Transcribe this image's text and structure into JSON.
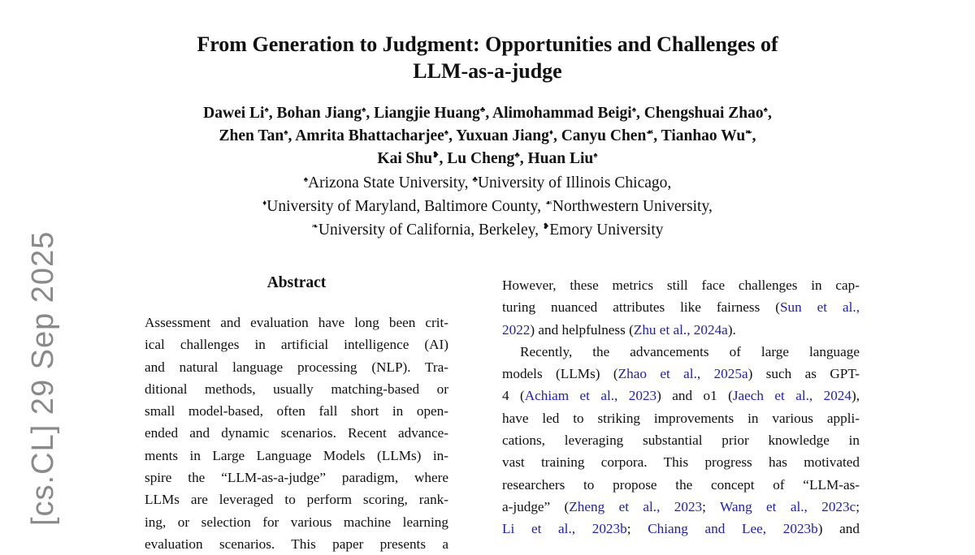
{
  "title": [
    "From Generation to Judgment: Opportunities and Challenges of",
    "LLM-as-a-judge"
  ],
  "authors": [
    [
      [
        "Dawei Li",
        "♠"
      ],
      [
        "Bohan Jiang",
        "♠"
      ],
      [
        "Liangjie Huang",
        "♣"
      ],
      [
        "Alimohammad Beigi",
        "♠"
      ],
      [
        "Chengshuai Zhao",
        "♠"
      ]
    ],
    [
      [
        "Zhen Tan",
        "♠"
      ],
      [
        "Amrita Bhattacharjee",
        "♠"
      ],
      [
        "Yuxuan Jiang",
        "♦"
      ],
      [
        "Canyu Chen",
        "☙"
      ],
      [
        "Tianhao Wu",
        "❧"
      ]
    ],
    [
      [
        "Kai Shu",
        "❥"
      ],
      [
        "Lu Cheng",
        "♣"
      ],
      [
        "Huan Liu",
        "♠"
      ]
    ]
  ],
  "affiliations": [
    [
      [
        "♠",
        "Arizona State University"
      ],
      [
        "♣",
        "University of Illinois Chicago"
      ]
    ],
    [
      [
        "♦",
        "University of Maryland, Baltimore County"
      ],
      [
        "☙",
        "Northwestern University"
      ]
    ],
    [
      [
        "❧",
        "University of California, Berkeley"
      ],
      [
        "❥",
        "Emory University"
      ]
    ]
  ],
  "arxiv_stamp": "[cs.CL]  29 Sep 2025",
  "abstract_heading": "Abstract",
  "abstract_lines": [
    [
      {
        "t": "Assessment and evaluation have long been crit-"
      }
    ],
    [
      {
        "t": "ical challenges in artificial intelligence (AI)"
      }
    ],
    [
      {
        "t": "and natural language processing (NLP). Tra-"
      }
    ],
    [
      {
        "t": "ditional methods, usually matching-based or"
      }
    ],
    [
      {
        "t": "small model-based, often fall short in open-"
      }
    ],
    [
      {
        "t": "ended and dynamic scenarios. Recent advance-"
      }
    ],
    [
      {
        "t": "ments in Large Language Models (LLMs) in-"
      }
    ],
    [
      {
        "t": "spire the “LLM-as-a-judge” paradigm, where"
      }
    ],
    [
      {
        "t": "LLMs are leveraged to perform scoring, rank-"
      }
    ],
    [
      {
        "t": "ing, or selection for various machine learning"
      }
    ],
    [
      {
        "t": "evaluation scenarios.  This paper presents a"
      }
    ]
  ],
  "body_lines": [
    {
      "segs": [
        {
          "t": "However, these metrics still face challenges in cap-"
        }
      ]
    },
    {
      "segs": [
        {
          "t": "turing nuanced attributes like fairness ("
        },
        {
          "t": "Sun et al.,",
          "link": true
        }
      ]
    },
    {
      "last": true,
      "segs": [
        {
          "t": "2022",
          "link": true
        },
        {
          "t": ") and helpfulness ("
        },
        {
          "t": "Zhu et al., 2024a",
          "link": true
        },
        {
          "t": ")."
        }
      ]
    },
    {
      "indent": true,
      "segs": [
        {
          "t": "Recently, the advancements of large language"
        }
      ]
    },
    {
      "segs": [
        {
          "t": "models (LLMs) ("
        },
        {
          "t": "Zhao et al., 2025a",
          "link": true
        },
        {
          "t": ") such as GPT-"
        }
      ]
    },
    {
      "segs": [
        {
          "t": "4 ("
        },
        {
          "t": "Achiam et al., 2023",
          "link": true
        },
        {
          "t": ") and o1 ("
        },
        {
          "t": "Jaech et al., 2024",
          "link": true
        },
        {
          "t": "),"
        }
      ]
    },
    {
      "segs": [
        {
          "t": "have led to striking improvements in various appli-"
        }
      ]
    },
    {
      "segs": [
        {
          "t": "cations, leveraging substantial prior knowledge in"
        }
      ]
    },
    {
      "segs": [
        {
          "t": "vast training corpora. This progress has motivated"
        }
      ]
    },
    {
      "segs": [
        {
          "t": "researchers to propose the concept of “LLM-as-"
        }
      ]
    },
    {
      "segs": [
        {
          "t": "a-judge” ("
        },
        {
          "t": "Zheng et al., 2023",
          "link": true
        },
        {
          "t": "; "
        },
        {
          "t": "Wang et al., 2023c",
          "link": true
        },
        {
          "t": ";"
        }
      ]
    },
    {
      "segs": [
        {
          "t": "Li et al., 2023b",
          "link": true
        },
        {
          "t": "; "
        },
        {
          "t": "Chiang and Lee, 2023b",
          "link": true
        },
        {
          "t": ") and"
        }
      ]
    }
  ],
  "colors": {
    "link": "#1f1fb0",
    "stamp": "#8a8a8a"
  }
}
